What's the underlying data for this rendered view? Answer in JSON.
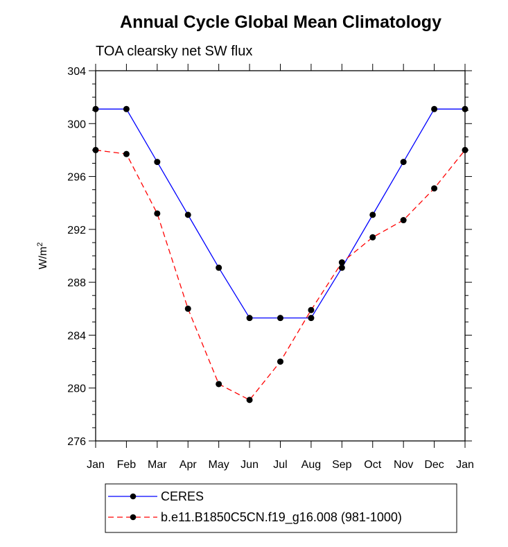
{
  "chart_data": {
    "type": "line",
    "title": "Annual Cycle Global Mean Climatology",
    "subtitle": "TOA clearsky net SW flux",
    "ylabel": "W/m",
    "ylabel_superscript": "2",
    "xlabel": "",
    "categories": [
      "Jan",
      "Feb",
      "Mar",
      "Apr",
      "May",
      "Jun",
      "Jul",
      "Aug",
      "Sep",
      "Oct",
      "Nov",
      "Dec",
      "Jan"
    ],
    "ylim": [
      276,
      304
    ],
    "yticks": [
      276,
      280,
      284,
      288,
      292,
      296,
      300,
      304
    ],
    "grid": false,
    "legend_position": "bottom",
    "series": [
      {
        "name": "CERES",
        "color": "#0000ff",
        "line_style": "solid",
        "marker": "filled-circle",
        "values": [
          301.1,
          301.1,
          297.1,
          293.1,
          289.1,
          285.3,
          285.3,
          285.3,
          289.1,
          293.1,
          297.1,
          301.1,
          301.1
        ]
      },
      {
        "name": "b.e11.B1850C5CN.f19_g16.008 (981-1000)",
        "color": "#ff0000",
        "line_style": "dashed",
        "marker": "filled-circle",
        "values": [
          298.0,
          297.7,
          293.2,
          286.0,
          280.3,
          279.1,
          282.0,
          285.9,
          289.5,
          291.4,
          292.7,
          295.1,
          298.0
        ]
      }
    ]
  }
}
